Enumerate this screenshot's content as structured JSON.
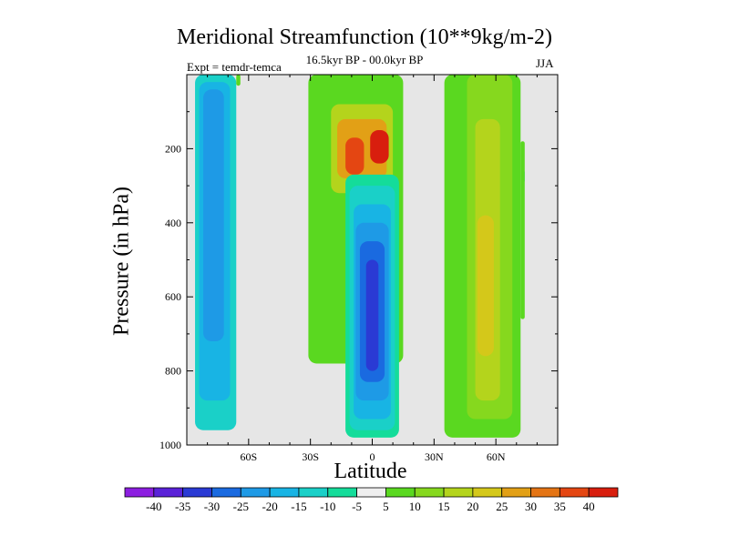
{
  "chart_data": {
    "type": "contour",
    "title": "Meridional Streamfunction (10**9kg/m-2)",
    "subtitle": "16.5kyr BP - 00.0kyr BP",
    "left_label": "Expt = temdr-temca",
    "right_label": "JJA",
    "xlabel": "Latitude",
    "ylabel": "Pressure (in hPa)",
    "xlim": [
      -90,
      90
    ],
    "ylim": [
      1000,
      0
    ],
    "x_ticks": [
      {
        "value": -60,
        "label": "60S"
      },
      {
        "value": -30,
        "label": "30S"
      },
      {
        "value": 0,
        "label": "0"
      },
      {
        "value": 30,
        "label": "30N"
      },
      {
        "value": 60,
        "label": "60N"
      }
    ],
    "y_ticks": [
      {
        "value": 200,
        "label": "200"
      },
      {
        "value": 400,
        "label": "400"
      },
      {
        "value": 600,
        "label": "600"
      },
      {
        "value": 800,
        "label": "800"
      },
      {
        "value": 1000,
        "label": "1000"
      }
    ],
    "background_color": "#e6e6e6",
    "colorbar": {
      "labels": [
        "-40",
        "-35",
        "-30",
        "-25",
        "-20",
        "-15",
        "-10",
        "-5",
        "5",
        "10",
        "15",
        "20",
        "25",
        "30",
        "35",
        "40"
      ],
      "colors": [
        "#8c1ee0",
        "#5a22d8",
        "#2a3ad4",
        "#1a6ae0",
        "#1e9ae6",
        "#18b4e4",
        "#1ad0c8",
        "#14dc9a",
        "#eeeeee",
        "#5ad820",
        "#86d81e",
        "#b4d41c",
        "#d4c81a",
        "#e2a016",
        "#e47414",
        "#e44612",
        "#d81e0e"
      ]
    },
    "regions": [
      {
        "name": "sh-cell-outer",
        "level": -10,
        "x_from": -86,
        "x_to": -66,
        "p_top": 0,
        "p_bottom": 960,
        "cx": -78,
        "p": 500
      },
      {
        "name": "sh-cell-mid",
        "level": -15,
        "x_from": -84,
        "x_to": -69,
        "p_top": 20,
        "p_bottom": 880,
        "cx": -77,
        "p": 450
      },
      {
        "name": "sh-cell-core",
        "level": -20,
        "x_from": -82,
        "x_to": -72,
        "p_top": 40,
        "p_bottom": 720,
        "cx": -77,
        "p": 400
      },
      {
        "name": "north-strip",
        "level": 5,
        "x_from": -66,
        "x_to": -64,
        "p_top": 0,
        "p_bottom": 30,
        "cx": -65,
        "p": 15
      },
      {
        "name": "hadley-green",
        "level": 5,
        "x_from": -31,
        "x_to": 15,
        "p_top": 0,
        "p_bottom": 780,
        "cx": -8,
        "p": 400
      },
      {
        "name": "hadley-yellow",
        "level": 15,
        "x_from": -20,
        "x_to": 10,
        "p_top": 80,
        "p_bottom": 320,
        "cx": -5,
        "p": 200
      },
      {
        "name": "hadley-orange",
        "level": 25,
        "x_from": -17,
        "x_to": 7,
        "p_top": 120,
        "p_bottom": 280,
        "cx": -5,
        "p": 200
      },
      {
        "name": "hadley-core-left",
        "level": 35,
        "x_from": -13,
        "x_to": -4,
        "p_top": 170,
        "p_bottom": 270,
        "cx": -8,
        "p": 220
      },
      {
        "name": "hadley-core-right",
        "level": 40,
        "x_from": -1,
        "x_to": 8,
        "p_top": 150,
        "p_bottom": 240,
        "cx": 3,
        "p": 190
      },
      {
        "name": "eq-neg-outer",
        "level": -5,
        "x_from": -13,
        "x_to": 13,
        "p_top": 270,
        "p_bottom": 980,
        "cx": 0,
        "p": 600
      },
      {
        "name": "eq-neg-10",
        "level": -10,
        "x_from": -11,
        "x_to": 11,
        "p_top": 300,
        "p_bottom": 960,
        "cx": 0,
        "p": 620
      },
      {
        "name": "eq-neg-15",
        "level": -15,
        "x_from": -9,
        "x_to": 9,
        "p_top": 350,
        "p_bottom": 930,
        "cx": 0,
        "p": 620
      },
      {
        "name": "eq-neg-20",
        "level": -20,
        "x_from": -8,
        "x_to": 8,
        "p_top": 400,
        "p_bottom": 880,
        "cx": 0,
        "p": 620
      },
      {
        "name": "eq-neg-25",
        "level": -25,
        "x_from": -6,
        "x_to": 6,
        "p_top": 450,
        "p_bottom": 830,
        "cx": 0,
        "p": 630
      },
      {
        "name": "eq-neg-30",
        "level": -30,
        "x_from": -3,
        "x_to": 3,
        "p_top": 500,
        "p_bottom": 800,
        "cx": 3,
        "p": 650
      },
      {
        "name": "nh-cell-outer",
        "level": 5,
        "x_from": 35,
        "x_to": 72,
        "p_top": 0,
        "p_bottom": 980,
        "cx": 55,
        "p": 500
      },
      {
        "name": "nh-cell-mid",
        "level": 10,
        "x_from": 46,
        "x_to": 68,
        "p_top": 0,
        "p_bottom": 930,
        "cx": 55,
        "p": 450
      },
      {
        "name": "nh-cell-core",
        "level": 15,
        "x_from": 50,
        "x_to": 62,
        "p_top": 120,
        "p_bottom": 880,
        "cx": 55,
        "p": 500
      },
      {
        "name": "nh-cell-peak",
        "level": 20,
        "x_from": 51,
        "x_to": 59,
        "p_top": 380,
        "p_bottom": 760,
        "cx": 55,
        "p": 600
      },
      {
        "name": "north-edge-neg",
        "level": -10,
        "x_from": 73,
        "x_to": 74,
        "p_top": 260,
        "p_bottom": 290,
        "cx": 73.5,
        "p": 275
      },
      {
        "name": "north-edge-pos",
        "level": 5,
        "x_from": 72,
        "x_to": 74,
        "p_top": 180,
        "p_bottom": 660,
        "cx": 73,
        "p": 400
      }
    ]
  }
}
